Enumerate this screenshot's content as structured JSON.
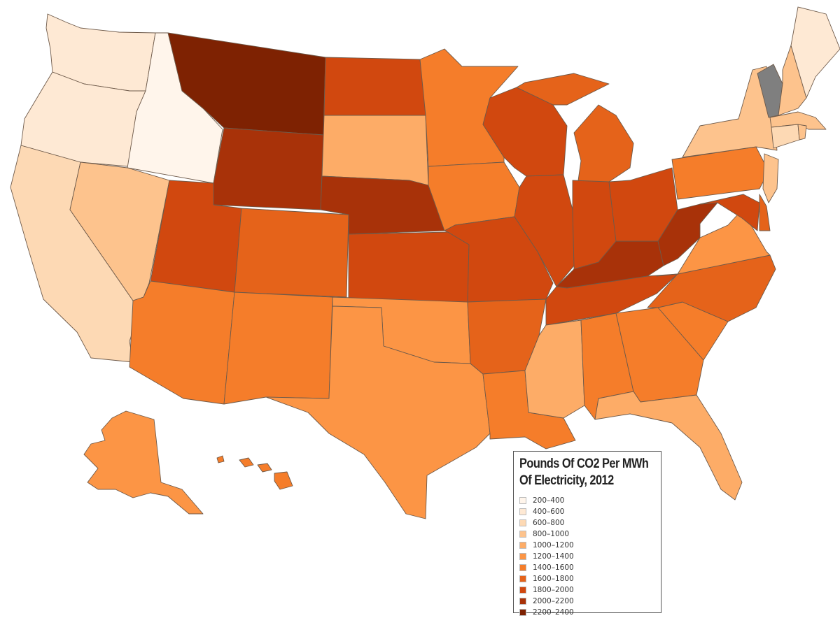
{
  "legend": {
    "title_line1": "Pounds Of CO2 Per MWh",
    "title_line2": "Of Electricity, 2012",
    "bins": [
      {
        "label": "200–400",
        "color": "#fff5eb"
      },
      {
        "label": "400–600",
        "color": "#fee9d4"
      },
      {
        "label": "600–800",
        "color": "#fdd9b4"
      },
      {
        "label": "800–1000",
        "color": "#fdc38d"
      },
      {
        "label": "1000–1200",
        "color": "#fdac67"
      },
      {
        "label": "1200–1400",
        "color": "#fc9545"
      },
      {
        "label": "1400–1600",
        "color": "#f57d2a"
      },
      {
        "label": "1600–1800",
        "color": "#e5631a"
      },
      {
        "label": "1800–2000",
        "color": "#d1480f"
      },
      {
        "label": "2000–2200",
        "color": "#a83209"
      },
      {
        "label": "2200–2400",
        "color": "#7e2202"
      }
    ],
    "no_data_color": "#7f7f7f"
  },
  "states": [
    {
      "id": "WA",
      "bin": 1
    },
    {
      "id": "OR",
      "bin": 1
    },
    {
      "id": "CA",
      "bin": 2
    },
    {
      "id": "ID",
      "bin": 0
    },
    {
      "id": "NV",
      "bin": 3
    },
    {
      "id": "MT",
      "bin": 10
    },
    {
      "id": "WY",
      "bin": 9
    },
    {
      "id": "UT",
      "bin": 8
    },
    {
      "id": "CO",
      "bin": 7
    },
    {
      "id": "AZ",
      "bin": 6
    },
    {
      "id": "NM",
      "bin": 6
    },
    {
      "id": "ND",
      "bin": 8
    },
    {
      "id": "SD",
      "bin": 4
    },
    {
      "id": "NE",
      "bin": 9
    },
    {
      "id": "KS",
      "bin": 8
    },
    {
      "id": "OK",
      "bin": 5
    },
    {
      "id": "TX",
      "bin": 5
    },
    {
      "id": "MN",
      "bin": 6
    },
    {
      "id": "IA",
      "bin": 6
    },
    {
      "id": "MO",
      "bin": 8
    },
    {
      "id": "AR",
      "bin": 7
    },
    {
      "id": "LA",
      "bin": 6
    },
    {
      "id": "WI",
      "bin": 8
    },
    {
      "id": "IL",
      "bin": 8
    },
    {
      "id": "MI",
      "bin": 7
    },
    {
      "id": "IN",
      "bin": 8
    },
    {
      "id": "OH",
      "bin": 8
    },
    {
      "id": "KY",
      "bin": 9
    },
    {
      "id": "TN",
      "bin": 8
    },
    {
      "id": "MS",
      "bin": 4
    },
    {
      "id": "AL",
      "bin": 6
    },
    {
      "id": "GA",
      "bin": 6
    },
    {
      "id": "FL",
      "bin": 4
    },
    {
      "id": "SC",
      "bin": 6
    },
    {
      "id": "NC",
      "bin": 7
    },
    {
      "id": "VA",
      "bin": 5
    },
    {
      "id": "WV",
      "bin": 9
    },
    {
      "id": "PA",
      "bin": 6
    },
    {
      "id": "NY",
      "bin": 3
    },
    {
      "id": "VT",
      "bin": -1
    },
    {
      "id": "NH",
      "bin": 3
    },
    {
      "id": "ME",
      "bin": 1
    },
    {
      "id": "MA",
      "bin": 3
    },
    {
      "id": "CT",
      "bin": 2
    },
    {
      "id": "RI",
      "bin": 3
    },
    {
      "id": "NJ",
      "bin": 3
    },
    {
      "id": "DE",
      "bin": 7
    },
    {
      "id": "MD",
      "bin": 8
    },
    {
      "id": "AK",
      "bin": 5
    },
    {
      "id": "HI",
      "bin": 6
    }
  ]
}
